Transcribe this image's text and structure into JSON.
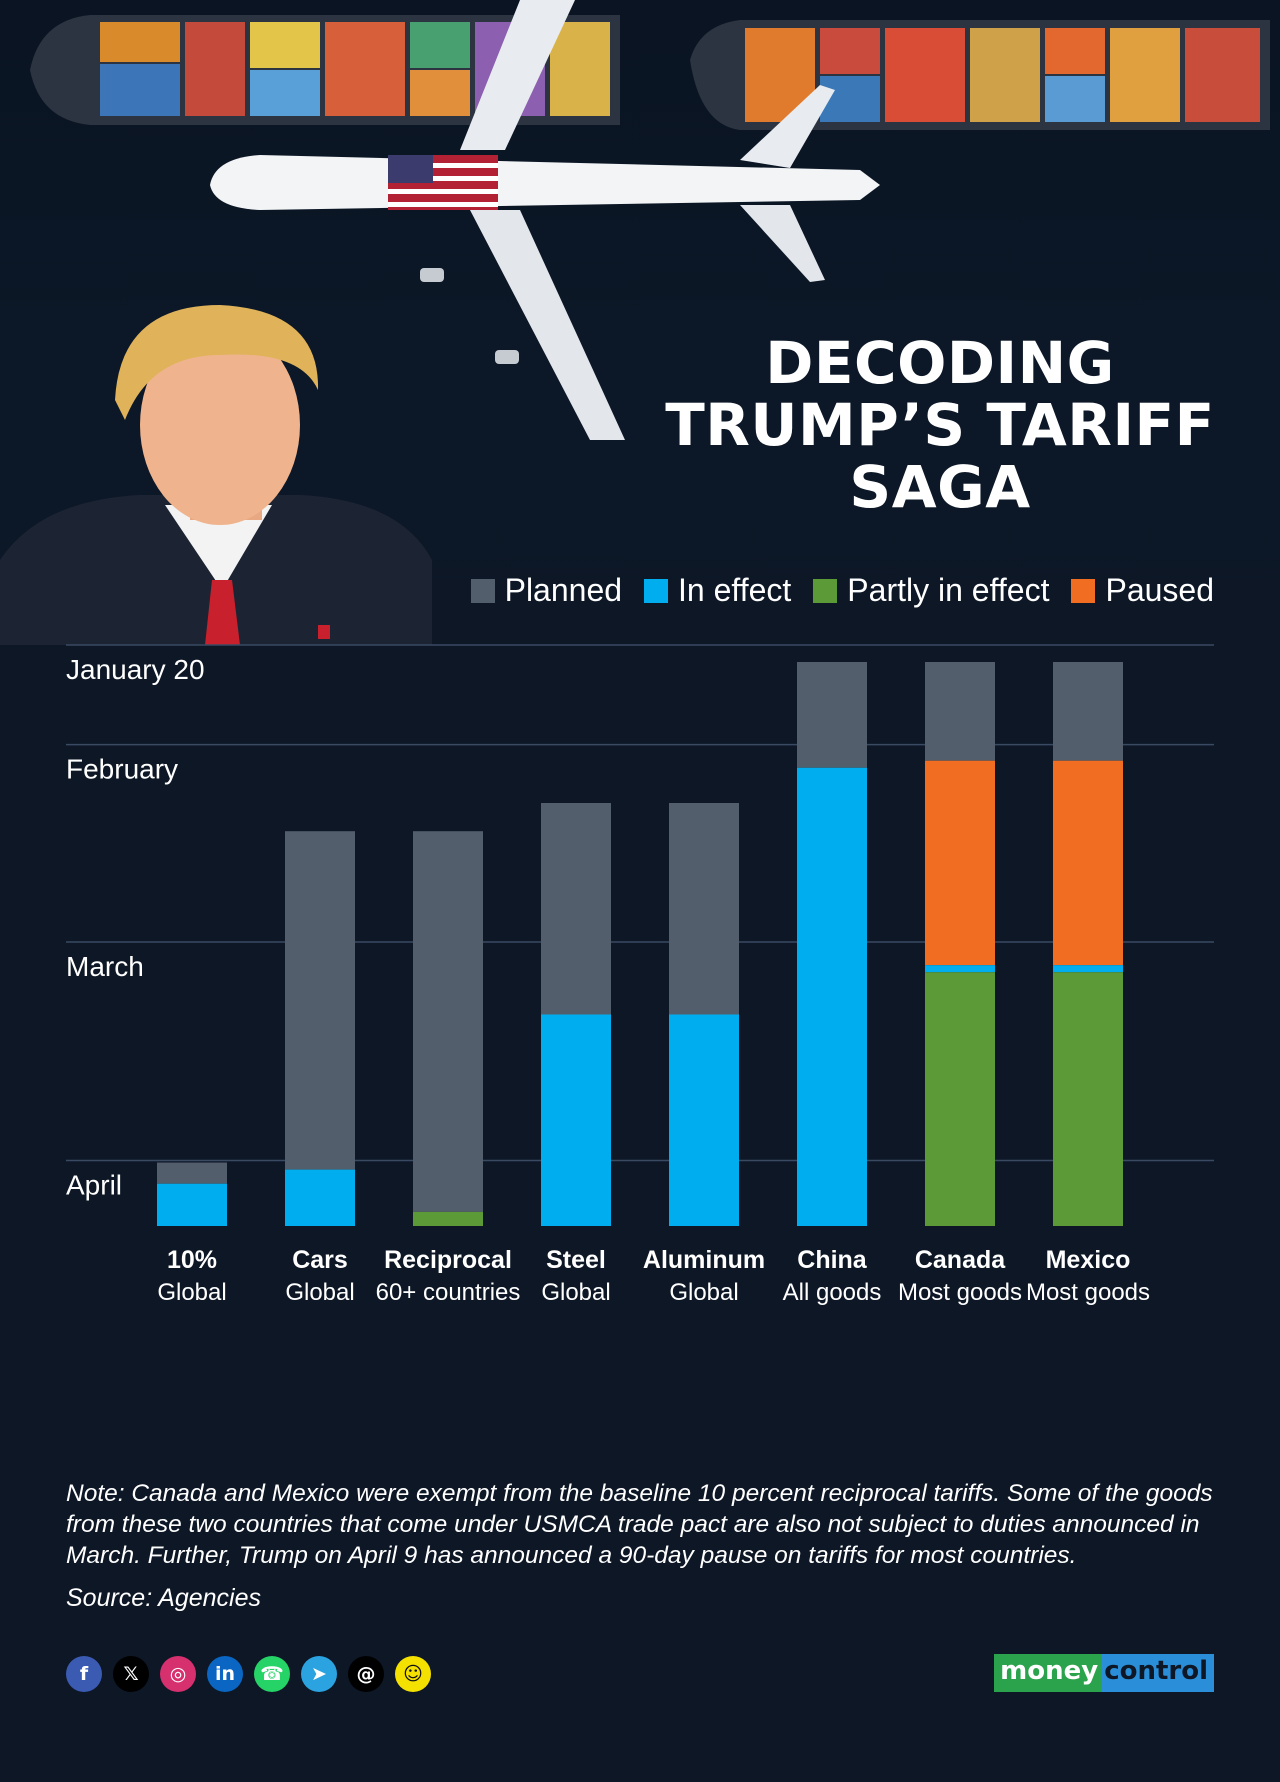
{
  "title": {
    "line1": "DECODING",
    "line2": "TRUMP’S TARIFF",
    "line3": "SAGA"
  },
  "colors": {
    "background": "#0d1726",
    "planned": "#525e6b",
    "in_effect": "#00aeef",
    "partly_in_effect": "#5b9a36",
    "paused": "#f06d22",
    "gridline": "#3a4a62"
  },
  "legend": [
    {
      "label": "Planned",
      "color": "#525e6b"
    },
    {
      "label": "In effect",
      "color": "#00aeef"
    },
    {
      "label": "Partly in effect",
      "color": "#5b9a36"
    },
    {
      "label": "Paused",
      "color": "#f06d22"
    }
  ],
  "chart_data": {
    "type": "bar",
    "subtype": "stacked-timeline",
    "title": "Decoding Trump's tariff saga",
    "time_axis": {
      "direction": "top-to-bottom",
      "unit": "days since January 20",
      "range": [
        0,
        90
      ],
      "ticks": [
        {
          "label": "January 20",
          "day": 0
        },
        {
          "label": "February",
          "day": 12
        },
        {
          "label": "March",
          "day": 40
        },
        {
          "label": "April",
          "day": 71
        }
      ]
    },
    "categories": [
      {
        "name": "10%",
        "sub": "Global"
      },
      {
        "name": "Cars",
        "sub": "Global"
      },
      {
        "name": "Reciprocal",
        "sub": "60+ countries"
      },
      {
        "name": "Steel",
        "sub": "Global"
      },
      {
        "name": "Aluminum",
        "sub": "Global"
      },
      {
        "name": "China",
        "sub": "All goods"
      },
      {
        "name": "Canada",
        "sub": "Most goods"
      },
      {
        "name": "Mexico",
        "sub": "Most goods"
      }
    ],
    "segments": [
      [
        {
          "status": "planned",
          "from": 71,
          "to": 74
        },
        {
          "status": "in_effect",
          "from": 74,
          "to": 80
        }
      ],
      [
        {
          "status": "planned",
          "from": 24,
          "to": 72
        },
        {
          "status": "in_effect",
          "from": 72,
          "to": 80
        }
      ],
      [
        {
          "status": "planned",
          "from": 24,
          "to": 78
        },
        {
          "status": "partly_in_effect",
          "from": 78,
          "to": 80
        }
      ],
      [
        {
          "status": "planned",
          "from": 20,
          "to": 50
        },
        {
          "status": "in_effect",
          "from": 50,
          "to": 80
        }
      ],
      [
        {
          "status": "planned",
          "from": 20,
          "to": 50
        },
        {
          "status": "in_effect",
          "from": 50,
          "to": 80
        }
      ],
      [
        {
          "status": "planned",
          "from": 0,
          "to": 15
        },
        {
          "status": "in_effect",
          "from": 15,
          "to": 80
        }
      ],
      [
        {
          "status": "planned",
          "from": 0,
          "to": 14
        },
        {
          "status": "paused",
          "from": 14,
          "to": 43
        },
        {
          "status": "in_effect",
          "from": 43,
          "to": 44
        },
        {
          "status": "partly_in_effect",
          "from": 44,
          "to": 80
        }
      ],
      [
        {
          "status": "planned",
          "from": 0,
          "to": 14
        },
        {
          "status": "paused",
          "from": 14,
          "to": 43
        },
        {
          "status": "in_effect",
          "from": 43,
          "to": 44
        },
        {
          "status": "partly_in_effect",
          "from": 44,
          "to": 80
        }
      ]
    ]
  },
  "note": "Note: Canada and Mexico were exempt from the baseline 10 percent reciprocal tariffs. Some of the goods from these two countries that come under USMCA trade pact are also not subject to duties announced in March. Further, Trump on April 9 has announced a 90-day pause on tariffs for most countries.",
  "source": "Source: Agencies",
  "social_icons": [
    {
      "name": "facebook-icon",
      "glyph": "f",
      "color": "#3b5bb3"
    },
    {
      "name": "x-icon",
      "glyph": "𝕏",
      "color": "#000000"
    },
    {
      "name": "instagram-icon",
      "glyph": "◎",
      "color": "#d6306f"
    },
    {
      "name": "linkedin-icon",
      "glyph": "in",
      "color": "#0a66c2"
    },
    {
      "name": "whatsapp-icon",
      "glyph": "☎",
      "color": "#25d366"
    },
    {
      "name": "telegram-icon",
      "glyph": "➤",
      "color": "#2aa3e0"
    },
    {
      "name": "threads-icon",
      "glyph": "@",
      "color": "#000000"
    },
    {
      "name": "snapchat-icon",
      "glyph": "☺",
      "color": "#f5e100"
    }
  ],
  "brand": {
    "part1": "money",
    "part2": "control"
  }
}
